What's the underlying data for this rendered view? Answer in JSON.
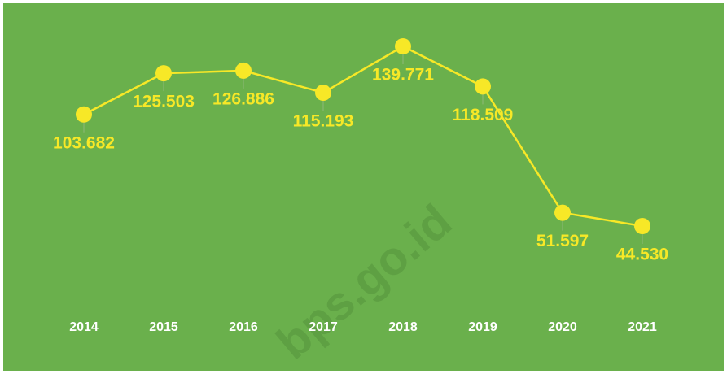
{
  "chart_data": {
    "type": "line",
    "categories": [
      "2014",
      "2015",
      "2016",
      "2017",
      "2018",
      "2019",
      "2020",
      "2021"
    ],
    "values": [
      103.682,
      125.503,
      126.886,
      115.193,
      139.771,
      118.509,
      51.597,
      44.53
    ],
    "value_labels": [
      "103.682",
      "125.503",
      "126.886",
      "115.193",
      "139.771",
      "118.509",
      "51.597",
      "44.530"
    ],
    "color": "#f7e827",
    "watermark": "bps.go.id"
  }
}
